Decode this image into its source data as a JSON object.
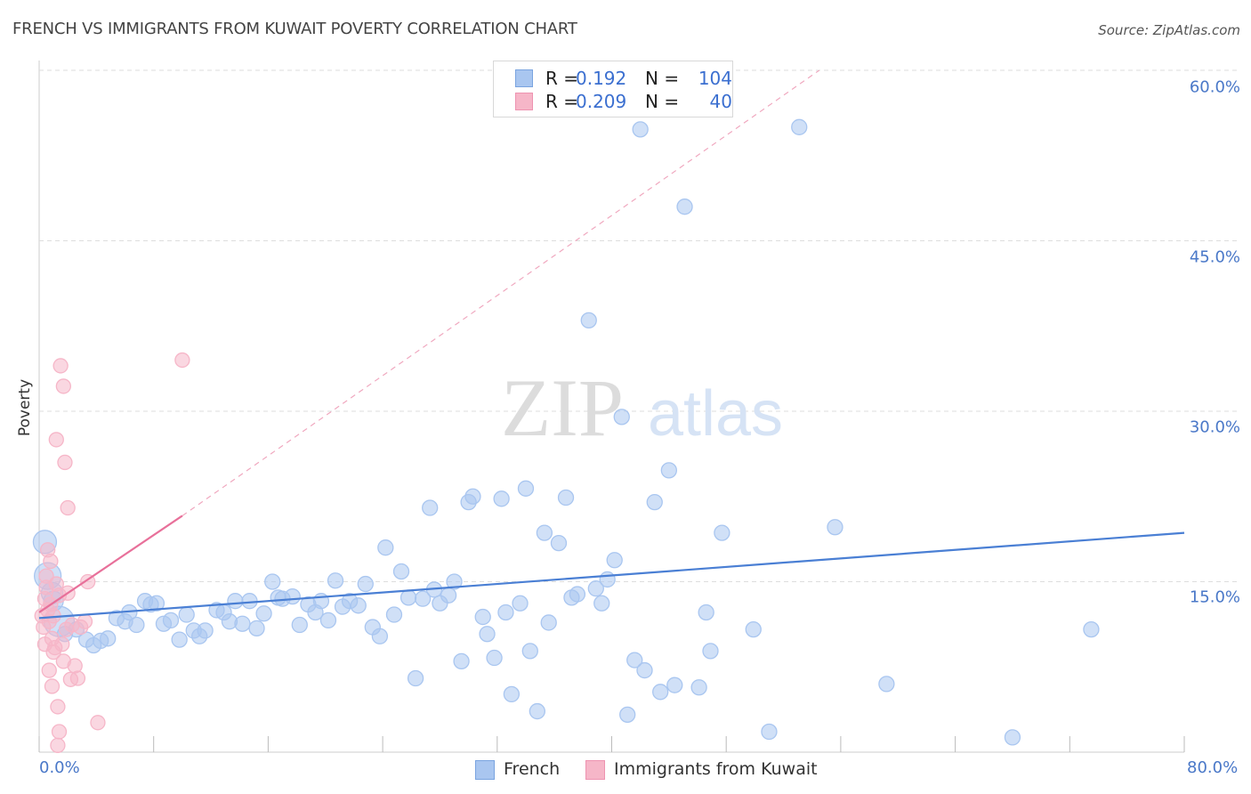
{
  "title": "FRENCH VS IMMIGRANTS FROM KUWAIT POVERTY CORRELATION CHART",
  "source": "Source: ZipAtlas.com",
  "watermark": {
    "zip": "ZIP",
    "atlas": "atlas"
  },
  "legend": {
    "rows": [
      {
        "r_label": "R =",
        "r_value": "0.192",
        "n_label": "N =",
        "n_value": "104",
        "color": "#a9c6f0"
      },
      {
        "r_label": "R =",
        "r_value": "0.209",
        "n_label": "N =",
        "n_value": "40",
        "color": "#f6b6c8"
      }
    ]
  },
  "bottom_legend": [
    {
      "label": "French",
      "color": "#a9c6f0"
    },
    {
      "label": "Immigrants from Kuwait",
      "color": "#f6b6c8"
    }
  ],
  "chart_data": {
    "type": "scatter",
    "title": "FRENCH VS IMMIGRANTS FROM KUWAIT POVERTY CORRELATION CHART",
    "xlabel": "",
    "ylabel": "Poverty",
    "xlim": [
      0,
      80
    ],
    "ylim": [
      0,
      60
    ],
    "x_tick_labels": {
      "min": "0.0%",
      "max": "80.0%"
    },
    "y_ticks": [
      15,
      30,
      45,
      60
    ],
    "y_tick_labels": [
      "15.0%",
      "30.0%",
      "45.0%",
      "60.0%"
    ],
    "grid": true,
    "legend_position": "top-center",
    "series": [
      {
        "name": "French",
        "color": "#4a7fd4",
        "fill": "#a9c6f0",
        "trend": {
          "x": [
            0,
            80
          ],
          "y": [
            11.8,
            19.3
          ],
          "style": "solid"
        },
        "points": [
          [
            0.4,
            18.5
          ],
          [
            0.6,
            15.5
          ],
          [
            0.9,
            14.0
          ],
          [
            1.0,
            13.3
          ],
          [
            1.4,
            11.5
          ],
          [
            1.8,
            10.4
          ],
          [
            2.6,
            10.8
          ],
          [
            3.3,
            9.9
          ],
          [
            3.8,
            9.4
          ],
          [
            4.3,
            9.8
          ],
          [
            4.8,
            10.0
          ],
          [
            5.4,
            11.8
          ],
          [
            6.0,
            11.5
          ],
          [
            6.3,
            12.3
          ],
          [
            6.8,
            11.2
          ],
          [
            7.4,
            13.3
          ],
          [
            7.8,
            13.0
          ],
          [
            8.2,
            13.1
          ],
          [
            8.7,
            11.3
          ],
          [
            9.2,
            11.6
          ],
          [
            9.8,
            9.9
          ],
          [
            10.3,
            12.1
          ],
          [
            10.8,
            10.7
          ],
          [
            11.2,
            10.2
          ],
          [
            11.6,
            10.7
          ],
          [
            12.4,
            12.5
          ],
          [
            12.9,
            12.3
          ],
          [
            13.3,
            11.5
          ],
          [
            13.7,
            13.3
          ],
          [
            14.2,
            11.3
          ],
          [
            14.7,
            13.3
          ],
          [
            15.2,
            10.9
          ],
          [
            15.7,
            12.2
          ],
          [
            16.3,
            15.0
          ],
          [
            16.7,
            13.6
          ],
          [
            17.0,
            13.5
          ],
          [
            17.7,
            13.7
          ],
          [
            18.2,
            11.2
          ],
          [
            18.8,
            13.0
          ],
          [
            19.3,
            12.3
          ],
          [
            19.7,
            13.3
          ],
          [
            20.2,
            11.6
          ],
          [
            20.7,
            15.1
          ],
          [
            21.2,
            12.8
          ],
          [
            21.7,
            13.3
          ],
          [
            22.3,
            12.9
          ],
          [
            22.8,
            14.8
          ],
          [
            23.3,
            11.0
          ],
          [
            23.8,
            10.2
          ],
          [
            24.2,
            18.0
          ],
          [
            24.8,
            12.1
          ],
          [
            25.3,
            15.9
          ],
          [
            25.8,
            13.6
          ],
          [
            26.3,
            6.5
          ],
          [
            26.8,
            13.5
          ],
          [
            27.3,
            21.5
          ],
          [
            27.6,
            14.3
          ],
          [
            28.0,
            13.1
          ],
          [
            28.6,
            13.8
          ],
          [
            29.0,
            15.0
          ],
          [
            29.5,
            8.0
          ],
          [
            30.0,
            22.0
          ],
          [
            30.3,
            22.5
          ],
          [
            31.0,
            11.9
          ],
          [
            31.3,
            10.4
          ],
          [
            31.8,
            8.3
          ],
          [
            32.3,
            22.3
          ],
          [
            32.6,
            12.3
          ],
          [
            33.0,
            5.1
          ],
          [
            33.6,
            13.1
          ],
          [
            34.0,
            23.2
          ],
          [
            34.3,
            8.9
          ],
          [
            34.8,
            3.6
          ],
          [
            35.3,
            19.3
          ],
          [
            35.6,
            11.4
          ],
          [
            36.3,
            18.4
          ],
          [
            36.8,
            22.4
          ],
          [
            37.2,
            13.6
          ],
          [
            37.6,
            13.9
          ],
          [
            38.4,
            38.0
          ],
          [
            38.9,
            14.4
          ],
          [
            39.3,
            13.1
          ],
          [
            39.7,
            15.2
          ],
          [
            40.2,
            16.9
          ],
          [
            40.7,
            29.5
          ],
          [
            41.1,
            3.3
          ],
          [
            41.6,
            8.1
          ],
          [
            42.0,
            54.8
          ],
          [
            42.3,
            7.2
          ],
          [
            43.0,
            22.0
          ],
          [
            43.4,
            5.3
          ],
          [
            44.0,
            24.8
          ],
          [
            44.4,
            5.9
          ],
          [
            45.1,
            48.0
          ],
          [
            46.1,
            5.7
          ],
          [
            46.6,
            12.3
          ],
          [
            46.9,
            8.9
          ],
          [
            47.7,
            19.3
          ],
          [
            49.9,
            10.8
          ],
          [
            51.0,
            1.8
          ],
          [
            53.1,
            55.0
          ],
          [
            55.6,
            19.8
          ],
          [
            59.2,
            6.0
          ],
          [
            68.0,
            1.3
          ],
          [
            73.5,
            10.8
          ]
        ]
      },
      {
        "name": "Immigrants from Kuwait",
        "color": "#e8709a",
        "fill": "#f6b6c8",
        "trend": {
          "x": [
            0,
            10
          ],
          "y": [
            12.3,
            20.8
          ],
          "style": "solid",
          "extended": {
            "x": [
              10,
              54.5
            ],
            "y": [
              20.8,
              60.0
            ],
            "style": "dashed"
          }
        },
        "points": [
          [
            0.2,
            12.0
          ],
          [
            0.3,
            11.0
          ],
          [
            0.4,
            13.5
          ],
          [
            0.4,
            9.5
          ],
          [
            0.5,
            15.5
          ],
          [
            0.5,
            14.5
          ],
          [
            0.6,
            12.5
          ],
          [
            0.6,
            17.8
          ],
          [
            0.7,
            11.5
          ],
          [
            0.7,
            7.2
          ],
          [
            0.8,
            16.8
          ],
          [
            0.8,
            13.0
          ],
          [
            0.9,
            10.0
          ],
          [
            0.9,
            5.8
          ],
          [
            1.0,
            12.0
          ],
          [
            1.0,
            8.8
          ],
          [
            1.1,
            9.2
          ],
          [
            1.2,
            27.5
          ],
          [
            1.2,
            14.8
          ],
          [
            1.3,
            4.0
          ],
          [
            1.3,
            0.6
          ],
          [
            1.4,
            1.8
          ],
          [
            1.4,
            13.8
          ],
          [
            1.5,
            34.0
          ],
          [
            1.6,
            9.5
          ],
          [
            1.7,
            32.2
          ],
          [
            1.7,
            8.0
          ],
          [
            1.8,
            25.5
          ],
          [
            1.9,
            10.8
          ],
          [
            2.0,
            14.0
          ],
          [
            2.0,
            21.5
          ],
          [
            2.2,
            6.4
          ],
          [
            2.3,
            11.2
          ],
          [
            2.5,
            7.6
          ],
          [
            2.7,
            6.5
          ],
          [
            2.9,
            11.0
          ],
          [
            3.2,
            11.5
          ],
          [
            3.4,
            15.0
          ],
          [
            4.1,
            2.6
          ],
          [
            10.0,
            34.5
          ]
        ]
      }
    ]
  }
}
